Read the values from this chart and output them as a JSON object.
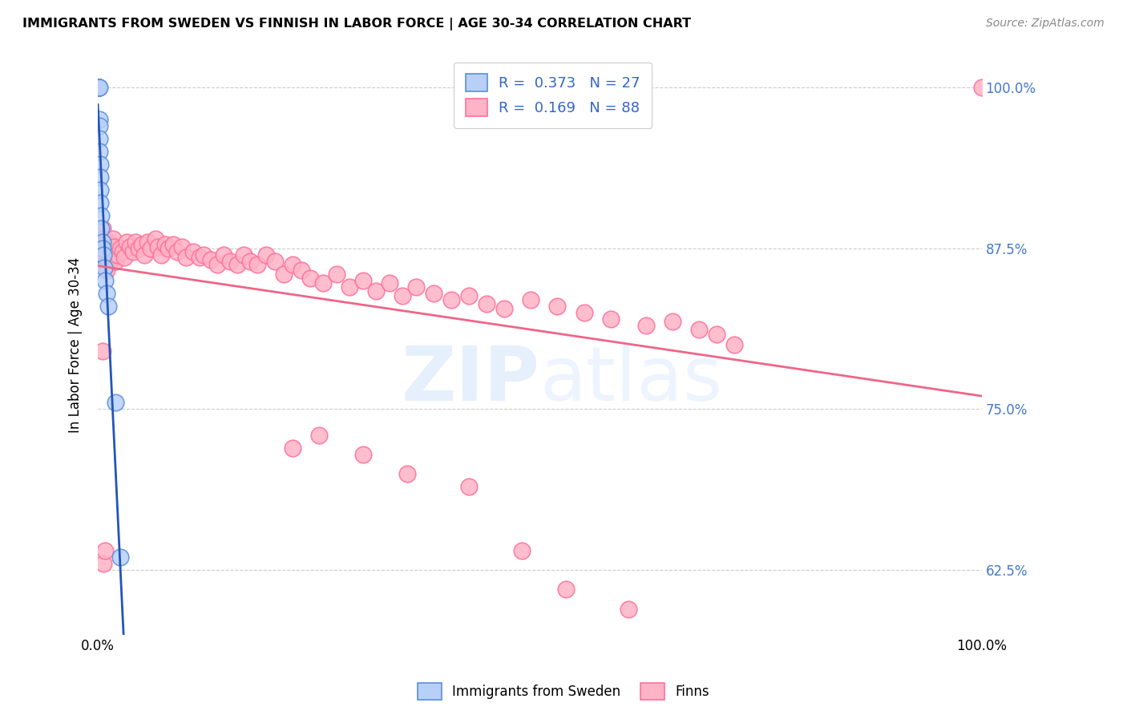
{
  "title": "IMMIGRANTS FROM SWEDEN VS FINNISH IN LABOR FORCE | AGE 30-34 CORRELATION CHART",
  "source": "Source: ZipAtlas.com",
  "ylabel": "In Labor Force | Age 30-34",
  "watermark_part1": "ZIP",
  "watermark_part2": "atlas",
  "legend": {
    "sweden_R": "0.373",
    "sweden_N": "27",
    "finns_R": "0.169",
    "finns_N": "88"
  },
  "blue_face": "#B8D0F8",
  "blue_edge": "#5B8DD9",
  "pink_face": "#FFB3C6",
  "pink_edge": "#FF7099",
  "trend_blue": "#2255BB",
  "trend_pink": "#EE6688",
  "legend_text_color": "#3366CC",
  "right_axis_color": "#4477CC",
  "xlim": [
    0.0,
    1.0
  ],
  "ylim": [
    0.575,
    1.025
  ],
  "yticks": [
    0.625,
    0.75,
    0.875,
    1.0
  ],
  "ytick_labels": [
    "62.5%",
    "75.0%",
    "87.5%",
    "100.0%"
  ],
  "sweden_x": [
    0.0005,
    0.001,
    0.001,
    0.001,
    0.001,
    0.001,
    0.001,
    0.0015,
    0.002,
    0.002,
    0.002,
    0.002,
    0.003,
    0.003,
    0.003,
    0.003,
    0.004,
    0.004,
    0.005,
    0.005,
    0.006,
    0.007,
    0.008,
    0.01,
    0.012,
    0.02,
    0.025
  ],
  "sweden_y": [
    1.0,
    1.0,
    1.0,
    1.0,
    1.0,
    1.0,
    1.0,
    1.0,
    0.975,
    0.97,
    0.96,
    0.95,
    0.94,
    0.93,
    0.92,
    0.91,
    0.9,
    0.89,
    0.88,
    0.875,
    0.87,
    0.86,
    0.85,
    0.84,
    0.83,
    0.755,
    0.635
  ],
  "finns_x": [
    0.003,
    0.004,
    0.004,
    0.005,
    0.005,
    0.006,
    0.007,
    0.007,
    0.008,
    0.008,
    0.009,
    0.01,
    0.01,
    0.011,
    0.012,
    0.013,
    0.014,
    0.015,
    0.016,
    0.017,
    0.018,
    0.019,
    0.02,
    0.022,
    0.025,
    0.028,
    0.03,
    0.033,
    0.036,
    0.04,
    0.043,
    0.046,
    0.05,
    0.053,
    0.056,
    0.06,
    0.065,
    0.068,
    0.072,
    0.076,
    0.08,
    0.085,
    0.09,
    0.095,
    0.1,
    0.108,
    0.115,
    0.12,
    0.128,
    0.135,
    0.142,
    0.15,
    0.158,
    0.165,
    0.172,
    0.18,
    0.19,
    0.2,
    0.21,
    0.22,
    0.23,
    0.24,
    0.255,
    0.27,
    0.285,
    0.3,
    0.315,
    0.33,
    0.345,
    0.36,
    0.38,
    0.4,
    0.42,
    0.44,
    0.46,
    0.49,
    0.52,
    0.55,
    0.58,
    0.62,
    0.65,
    0.68,
    0.7,
    0.72,
    1.0,
    0.005,
    0.006,
    0.008
  ],
  "finns_y": [
    0.88,
    0.885,
    0.875,
    0.89,
    0.87,
    0.882,
    0.878,
    0.865,
    0.872,
    0.86,
    0.868,
    0.875,
    0.858,
    0.87,
    0.88,
    0.875,
    0.868,
    0.878,
    0.872,
    0.882,
    0.876,
    0.868,
    0.865,
    0.87,
    0.875,
    0.872,
    0.868,
    0.88,
    0.876,
    0.872,
    0.88,
    0.875,
    0.878,
    0.87,
    0.88,
    0.875,
    0.882,
    0.876,
    0.87,
    0.878,
    0.875,
    0.878,
    0.872,
    0.876,
    0.868,
    0.872,
    0.868,
    0.87,
    0.866,
    0.862,
    0.87,
    0.865,
    0.862,
    0.87,
    0.865,
    0.862,
    0.87,
    0.865,
    0.855,
    0.862,
    0.858,
    0.852,
    0.848,
    0.855,
    0.845,
    0.85,
    0.842,
    0.848,
    0.838,
    0.845,
    0.84,
    0.835,
    0.838,
    0.832,
    0.828,
    0.835,
    0.83,
    0.825,
    0.82,
    0.815,
    0.818,
    0.812,
    0.808,
    0.8,
    1.0,
    0.795,
    0.63,
    0.64
  ],
  "finns_outliers_x": [
    0.22,
    0.25,
    0.3,
    0.35,
    0.42,
    0.48,
    0.53,
    0.6
  ],
  "finns_outliers_y": [
    0.72,
    0.73,
    0.715,
    0.7,
    0.69,
    0.64,
    0.61,
    0.595
  ]
}
